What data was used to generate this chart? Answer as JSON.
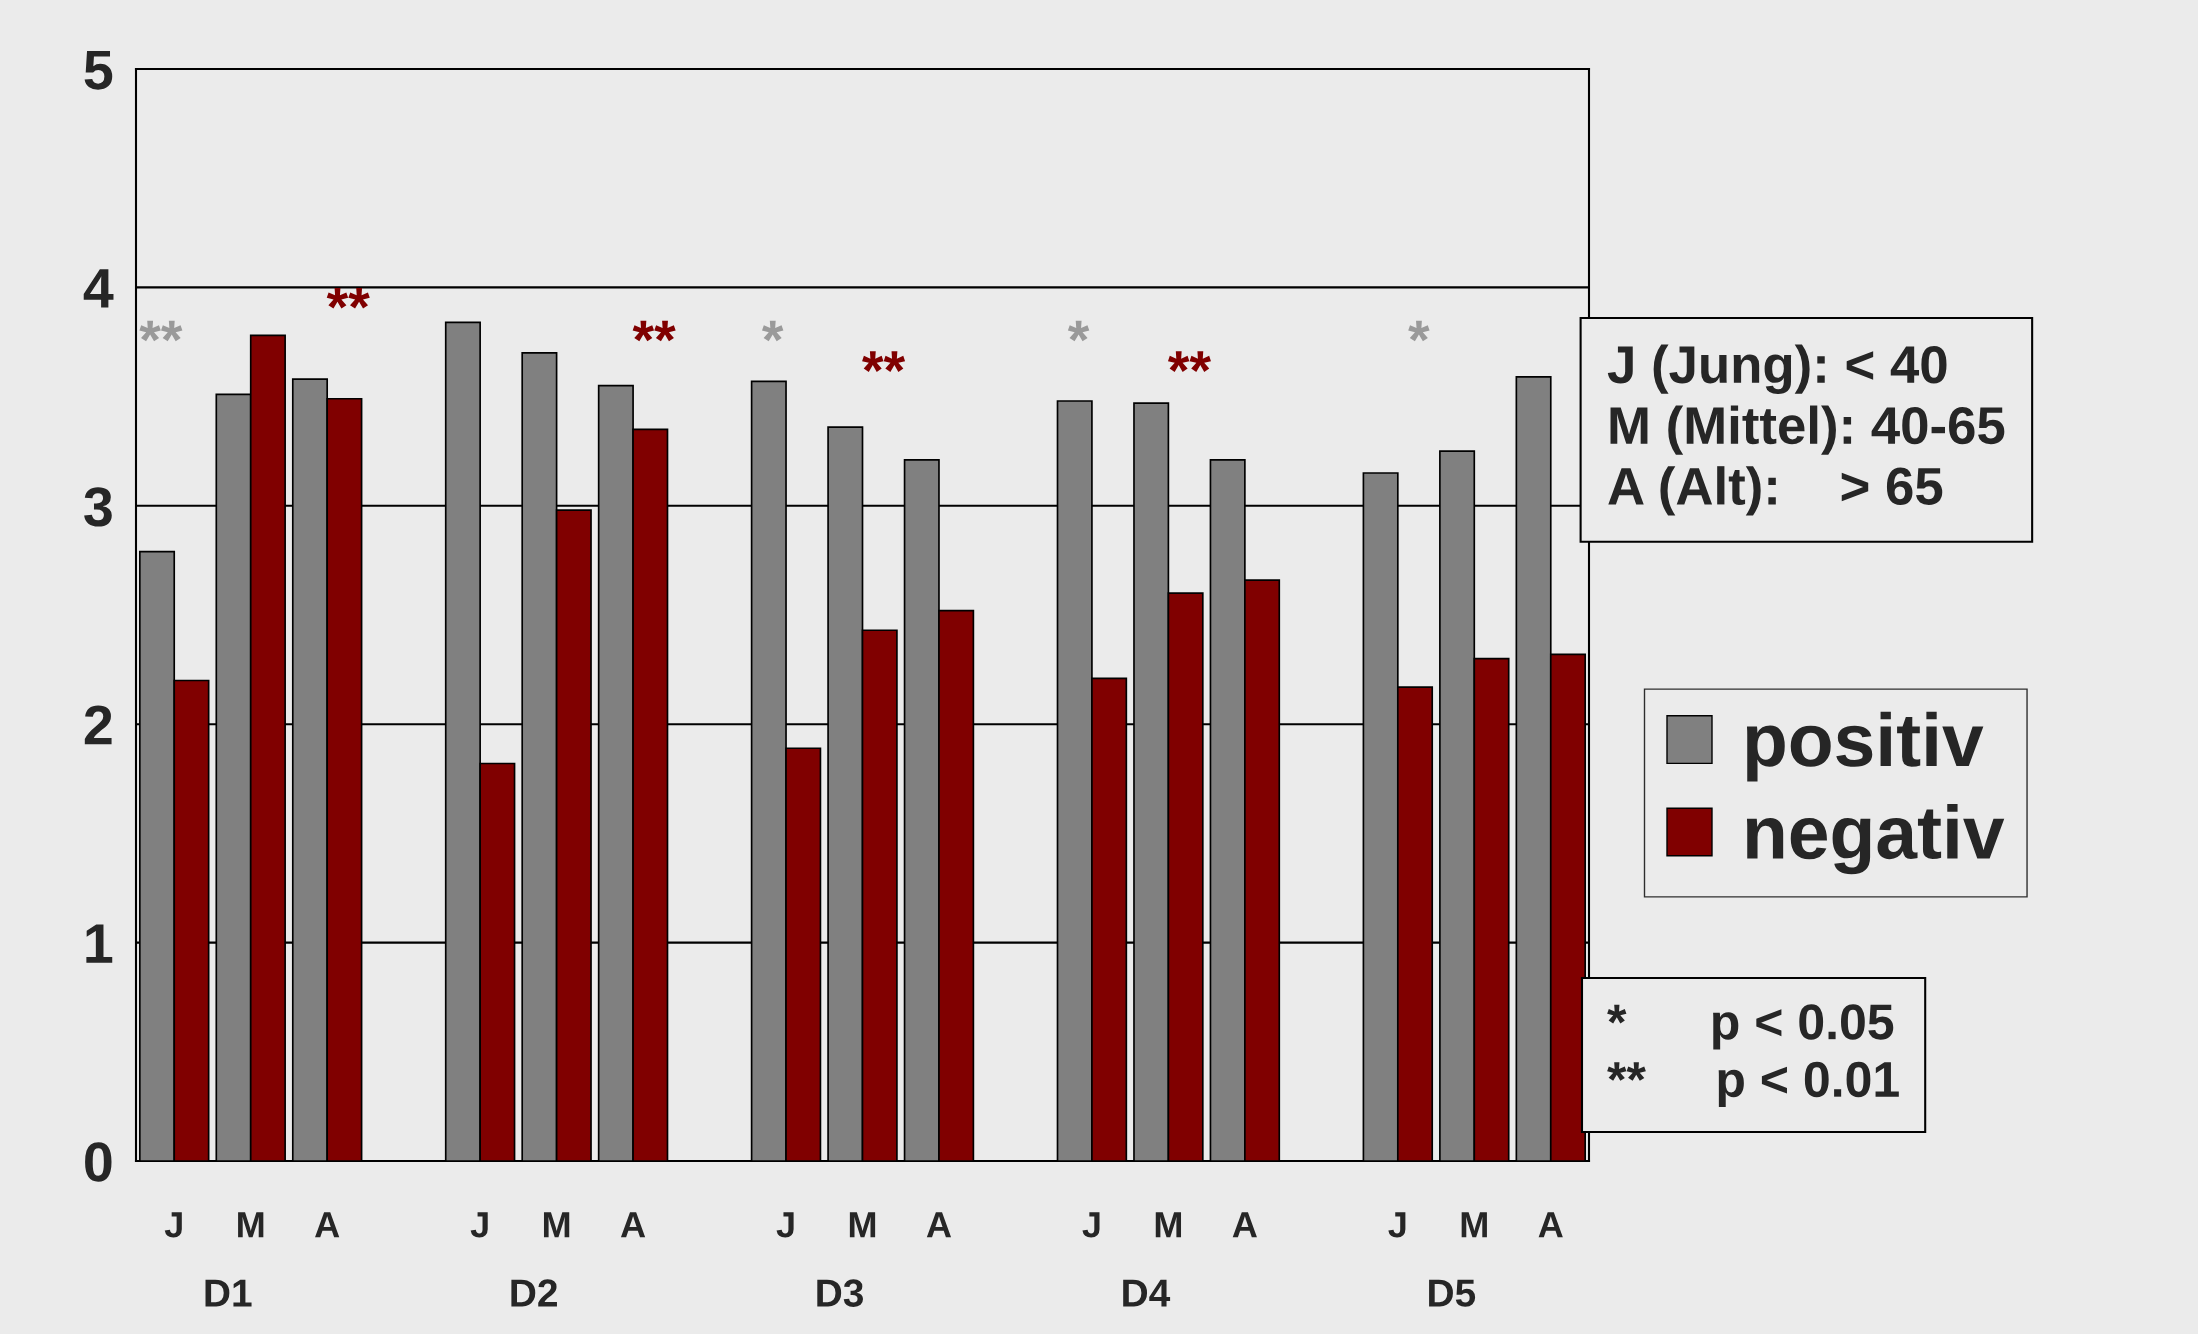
{
  "chart_data": {
    "type": "bar",
    "categories": [
      "J",
      "M",
      "A",
      null,
      "J",
      "M",
      "A",
      null,
      "J",
      "M",
      "A",
      null,
      "J",
      "M",
      "A",
      null,
      "J",
      "M",
      "A"
    ],
    "series": [
      {
        "name": "positiv",
        "color": "#808080",
        "values": [
          2.79,
          3.51,
          3.58,
          null,
          3.84,
          3.7,
          3.55,
          null,
          3.57,
          3.36,
          3.21,
          null,
          3.48,
          3.47,
          3.21,
          null,
          3.15,
          3.25,
          3.59
        ]
      },
      {
        "name": "negativ",
        "color": "#800000",
        "values": [
          2.2,
          3.78,
          3.49,
          null,
          1.82,
          2.98,
          3.35,
          null,
          1.89,
          2.43,
          2.52,
          null,
          2.21,
          2.6,
          2.66,
          null,
          2.17,
          2.3,
          2.32
        ]
      }
    ],
    "ylim": [
      0,
      5
    ],
    "yticks": [
      0,
      1,
      2,
      3,
      4,
      5
    ],
    "grid": "y",
    "legend": "right",
    "annotations": [
      "D1",
      "D2",
      "D3",
      "D4",
      "D5",
      "**",
      "**",
      "**",
      "*",
      "**",
      "*",
      "**",
      "*",
      "J (Jung): < 40\nM (Mittel): 40-65\nA (Alt):    > 65",
      "*      p < 0.05\n**     p < 0.01"
    ]
  }
}
